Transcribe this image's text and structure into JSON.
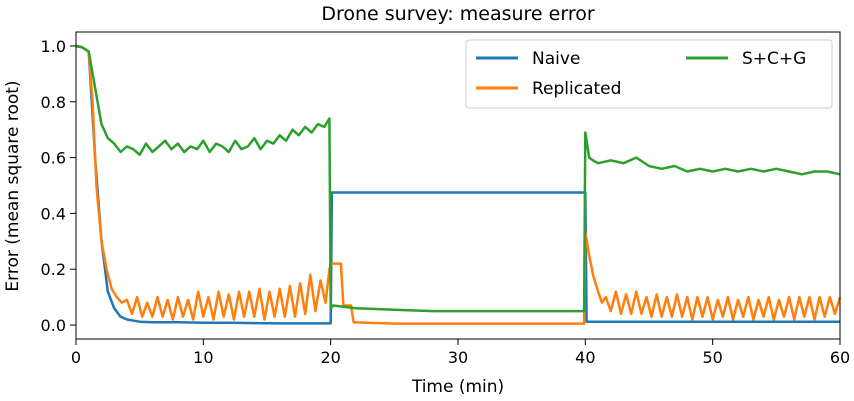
{
  "chart_data": {
    "type": "line",
    "title": "Drone survey: measure error",
    "xlabel": "Time (min)",
    "ylabel": "Error (mean square root)",
    "xlim": [
      0,
      60
    ],
    "ylim": [
      -0.05,
      1.05
    ],
    "xticks": [
      "0",
      "10",
      "20",
      "30",
      "40",
      "50",
      "60"
    ],
    "yticks": [
      "0.0",
      "0.2",
      "0.4",
      "0.6",
      "0.8",
      "1.0"
    ],
    "grid": false,
    "legend_position": "top-right",
    "series": [
      {
        "name": "Naive",
        "color": "#1f77b4",
        "x": [
          0,
          0.5,
          1,
          1.5,
          2,
          2.5,
          3,
          3.5,
          4,
          5,
          6,
          8,
          10,
          12,
          14,
          16,
          18,
          19.9,
          20.0,
          20.1,
          25,
          30,
          35,
          39.9,
          40.0,
          40.1,
          45,
          50,
          55,
          60
        ],
        "y": [
          1.0,
          0.995,
          0.98,
          0.6,
          0.3,
          0.12,
          0.06,
          0.03,
          0.02,
          0.012,
          0.01,
          0.01,
          0.008,
          0.008,
          0.007,
          0.006,
          0.006,
          0.006,
          0.006,
          0.475,
          0.475,
          0.475,
          0.475,
          0.475,
          0.475,
          0.012,
          0.012,
          0.012,
          0.012,
          0.012
        ]
      },
      {
        "name": "Replicated",
        "color": "#ff7f0e",
        "x": [
          0,
          0.5,
          1,
          1.3,
          1.6,
          2.0,
          2.4,
          2.8,
          3.2,
          3.6,
          4.0,
          4.4,
          4.8,
          5.2,
          5.6,
          6.0,
          6.4,
          6.8,
          7.2,
          7.6,
          8.0,
          8.4,
          8.8,
          9.2,
          9.6,
          10.0,
          10.4,
          10.8,
          11.2,
          11.6,
          12.0,
          12.4,
          12.8,
          13.2,
          13.6,
          14.0,
          14.4,
          14.8,
          15.2,
          15.6,
          16.0,
          16.4,
          16.8,
          17.2,
          17.6,
          18.0,
          18.4,
          18.8,
          19.2,
          19.6,
          19.9,
          20.0,
          20.2,
          20.8,
          21.0,
          21.6,
          21.8,
          25,
          30,
          35,
          39.9,
          40.0,
          40.3,
          40.6,
          41.0,
          41.3,
          41.6,
          42.0,
          42.4,
          42.8,
          43.2,
          43.6,
          44.0,
          44.4,
          44.8,
          45.2,
          45.6,
          46.0,
          46.4,
          46.8,
          47.2,
          47.6,
          48.0,
          48.4,
          48.8,
          49.2,
          49.6,
          50.0,
          50.4,
          50.8,
          51.2,
          51.6,
          52.0,
          52.4,
          52.8,
          53.2,
          53.6,
          54.0,
          54.4,
          54.8,
          55.2,
          55.6,
          56.0,
          56.4,
          56.8,
          57.2,
          57.6,
          58.0,
          58.4,
          58.8,
          59.2,
          59.6,
          60.0
        ],
        "y": [
          1.0,
          0.995,
          0.98,
          0.8,
          0.5,
          0.3,
          0.2,
          0.13,
          0.1,
          0.08,
          0.09,
          0.04,
          0.1,
          0.03,
          0.08,
          0.03,
          0.1,
          0.03,
          0.09,
          0.02,
          0.1,
          0.03,
          0.09,
          0.02,
          0.12,
          0.03,
          0.1,
          0.02,
          0.12,
          0.03,
          0.11,
          0.02,
          0.12,
          0.03,
          0.12,
          0.03,
          0.13,
          0.02,
          0.12,
          0.03,
          0.13,
          0.03,
          0.14,
          0.03,
          0.15,
          0.04,
          0.18,
          0.05,
          0.16,
          0.08,
          0.2,
          0.22,
          0.22,
          0.22,
          0.07,
          0.07,
          0.01,
          0.005,
          0.005,
          0.005,
          0.005,
          0.33,
          0.25,
          0.18,
          0.12,
          0.08,
          0.1,
          0.05,
          0.12,
          0.04,
          0.11,
          0.04,
          0.12,
          0.04,
          0.1,
          0.03,
          0.11,
          0.03,
          0.1,
          0.03,
          0.11,
          0.03,
          0.1,
          0.02,
          0.1,
          0.03,
          0.1,
          0.02,
          0.09,
          0.03,
          0.1,
          0.02,
          0.09,
          0.03,
          0.1,
          0.02,
          0.09,
          0.03,
          0.1,
          0.02,
          0.09,
          0.03,
          0.1,
          0.02,
          0.1,
          0.03,
          0.1,
          0.02,
          0.1,
          0.03,
          0.1,
          0.04,
          0.1
        ]
      },
      {
        "name": "S+C+G",
        "color": "#2ca02c",
        "x": [
          0,
          0.5,
          1,
          1.5,
          2,
          2.5,
          3,
          3.5,
          4,
          4.5,
          5,
          5.5,
          6,
          6.5,
          7,
          7.5,
          8,
          8.5,
          9,
          9.5,
          10,
          10.5,
          11,
          11.5,
          12,
          12.5,
          13,
          13.5,
          14,
          14.5,
          15,
          15.5,
          16,
          16.5,
          17,
          17.5,
          18,
          18.5,
          19,
          19.5,
          19.9,
          20.0,
          20.2,
          22,
          25,
          28,
          30,
          33,
          36,
          39.9,
          40.0,
          40.3,
          40.6,
          41,
          42,
          43,
          44,
          45,
          46,
          47,
          48,
          49,
          50,
          51,
          52,
          53,
          54,
          55,
          56,
          57,
          58,
          59,
          60
        ],
        "y": [
          1.0,
          0.995,
          0.98,
          0.85,
          0.72,
          0.67,
          0.65,
          0.62,
          0.64,
          0.63,
          0.61,
          0.65,
          0.62,
          0.64,
          0.66,
          0.63,
          0.65,
          0.62,
          0.64,
          0.63,
          0.66,
          0.62,
          0.65,
          0.64,
          0.62,
          0.66,
          0.63,
          0.64,
          0.67,
          0.63,
          0.66,
          0.65,
          0.68,
          0.66,
          0.7,
          0.68,
          0.71,
          0.69,
          0.72,
          0.71,
          0.74,
          0.06,
          0.07,
          0.06,
          0.055,
          0.05,
          0.05,
          0.05,
          0.05,
          0.05,
          0.69,
          0.6,
          0.59,
          0.58,
          0.59,
          0.58,
          0.6,
          0.57,
          0.56,
          0.57,
          0.55,
          0.56,
          0.55,
          0.56,
          0.55,
          0.56,
          0.55,
          0.56,
          0.55,
          0.54,
          0.55,
          0.55,
          0.54
        ]
      }
    ]
  }
}
